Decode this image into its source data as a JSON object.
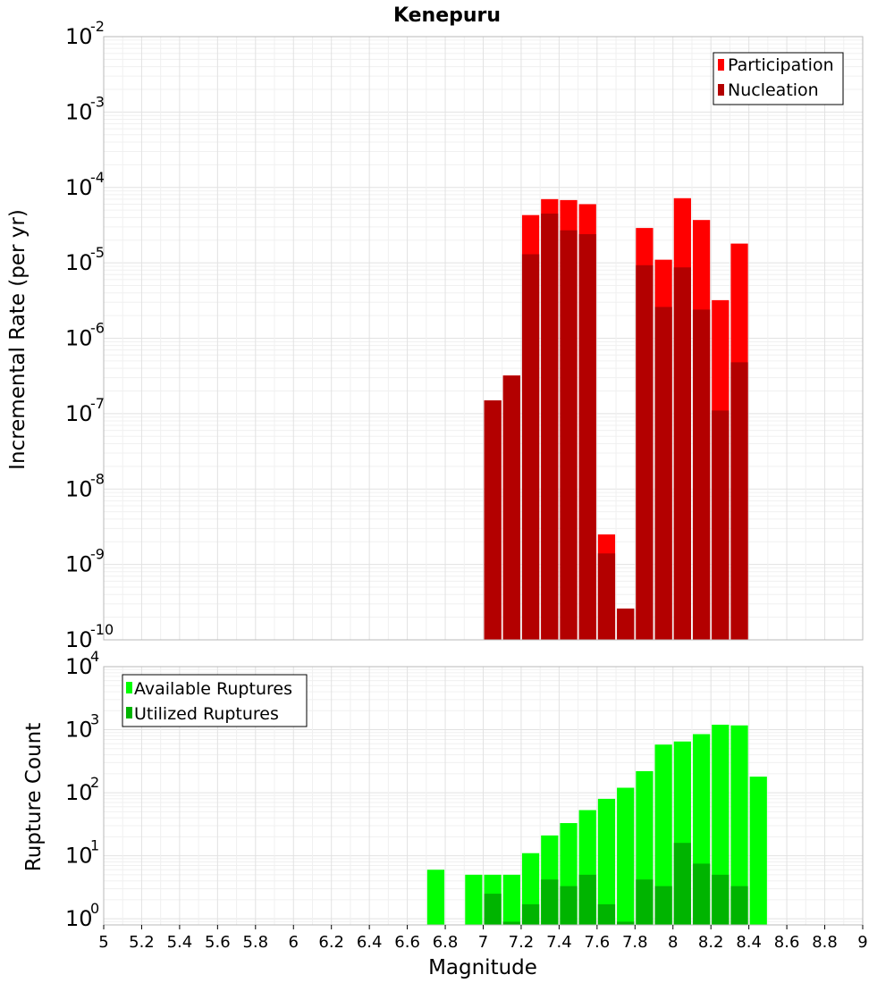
{
  "chart_data": [
    {
      "type": "bar",
      "title": "Kenepuru",
      "xlabel": "",
      "ylabel": "Incremental Rate (per yr)",
      "yscale": "log",
      "ylim": [
        1e-10,
        0.01
      ],
      "xlim": [
        5,
        9
      ],
      "ytick_exponents": [
        -10,
        -9,
        -8,
        -7,
        -6,
        -5,
        -4,
        -3,
        -2
      ],
      "legend_position": "top-right",
      "grid": true,
      "x": [
        7.05,
        7.15,
        7.25,
        7.35,
        7.45,
        7.55,
        7.65,
        7.75,
        7.85,
        7.95,
        8.05,
        8.15,
        8.25,
        8.35
      ],
      "series": [
        {
          "name": "Participation",
          "color": "#ff0000",
          "values": [
            1.5e-07,
            3.2e-07,
            4.3e-05,
            7e-05,
            6.8e-05,
            6e-05,
            2.5e-09,
            2.6e-10,
            2.9e-05,
            1.1e-05,
            7.2e-05,
            3.7e-05,
            3.2e-06,
            1.8e-05
          ]
        },
        {
          "name": "Nucleation",
          "color": "#b30000",
          "values": [
            1.5e-07,
            3.2e-07,
            1.3e-05,
            4.5e-05,
            2.7e-05,
            2.4e-05,
            1.4e-09,
            2.6e-10,
            9.3e-06,
            2.6e-06,
            8.7e-06,
            2.4e-06,
            1.1e-07,
            4.8e-07
          ]
        }
      ]
    },
    {
      "type": "bar",
      "title": "",
      "xlabel": "Magnitude",
      "ylabel": "Rupture Count",
      "yscale": "log",
      "ylim": [
        0.8,
        10000
      ],
      "xlim": [
        5,
        9
      ],
      "ytick_exponents": [
        0,
        1,
        2,
        3,
        4
      ],
      "xticks": [
        "5",
        "5.2",
        "5.4",
        "5.6",
        "5.8",
        "6",
        "6.2",
        "6.4",
        "6.6",
        "6.8",
        "7",
        "7.2",
        "7.4",
        "7.6",
        "7.8",
        "8",
        "8.2",
        "8.4",
        "8.6",
        "8.8",
        "9"
      ],
      "legend_position": "top-left",
      "grid": true,
      "x": [
        6.75,
        6.85,
        6.95,
        7.05,
        7.15,
        7.25,
        7.35,
        7.45,
        7.55,
        7.65,
        7.75,
        7.85,
        7.95,
        8.05,
        8.15,
        8.25,
        8.35,
        8.45
      ],
      "series": [
        {
          "name": "Available Ruptures",
          "color": "#00ff00",
          "values": [
            6,
            0,
            5,
            5,
            5,
            11,
            21,
            33,
            53,
            80,
            120,
            220,
            580,
            650,
            850,
            1200,
            1170,
            180
          ]
        },
        {
          "name": "Utilized Ruptures",
          "color": "#00b400",
          "values": [
            0,
            0,
            0,
            2.5,
            0.9,
            1.7,
            4.2,
            3.3,
            5,
            1.7,
            0.9,
            4.2,
            3.3,
            16,
            7.5,
            5,
            3.3,
            0
          ]
        }
      ]
    }
  ]
}
